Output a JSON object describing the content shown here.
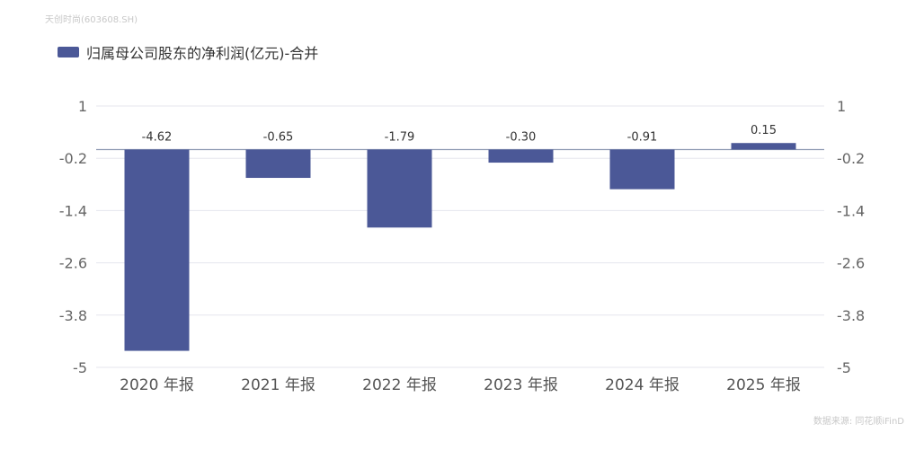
{
  "watermark": "天创时尚(603608.SH)",
  "source": "数据来源: 同花顺iFinD",
  "colors": {
    "bar": "#4b5897",
    "grid": "#e5e6ee",
    "zero_line": "#8f9bb3"
  },
  "chart_data": {
    "type": "bar",
    "legend": {
      "placement": "top-left"
    },
    "categories": [
      "2020 年报",
      "2021 年报",
      "2022 年报",
      "2023 年报",
      "2024 年报",
      "2025 年报"
    ],
    "series": [
      {
        "name": "归属母公司股东的净利润(亿元)-合并",
        "values": [
          -4.62,
          -0.65,
          -1.79,
          -0.3,
          -0.91,
          0.15
        ],
        "labels": [
          "-4.62",
          "-0.65",
          "-1.79",
          "-0.30",
          "-0.91",
          "0.15"
        ]
      }
    ],
    "yticks": [
      "1",
      "-0.2",
      "-1.4",
      "-2.6",
      "-3.8",
      "-5"
    ],
    "ytick_values": [
      1,
      -0.2,
      -1.4,
      -2.6,
      -3.8,
      -5
    ],
    "ylim": [
      -5,
      1
    ],
    "grid": true,
    "dual_axis_labels": true
  }
}
